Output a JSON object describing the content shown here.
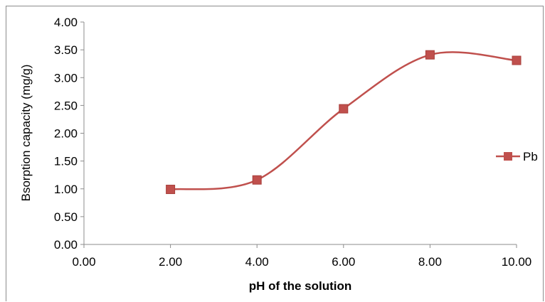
{
  "chart_data": {
    "type": "scatter",
    "xlabel": "pH of the solution",
    "ylabel": "Bsorption capacity (mg/g)",
    "xlim": [
      0,
      10
    ],
    "ylim": [
      0,
      4
    ],
    "x_ticks": [
      "0.00",
      "2.00",
      "4.00",
      "6.00",
      "8.00",
      "10.00"
    ],
    "y_ticks": [
      "0.00",
      "0.50",
      "1.00",
      "1.50",
      "2.00",
      "2.50",
      "3.00",
      "3.50",
      "4.00"
    ],
    "grid": false,
    "legend_position": "right",
    "series": [
      {
        "name": "Pb",
        "color": "#c0504d",
        "marker": "square",
        "smooth": true,
        "x": [
          2,
          4,
          6,
          8,
          10
        ],
        "y": [
          0.99,
          1.16,
          2.44,
          3.41,
          3.31
        ]
      }
    ]
  }
}
